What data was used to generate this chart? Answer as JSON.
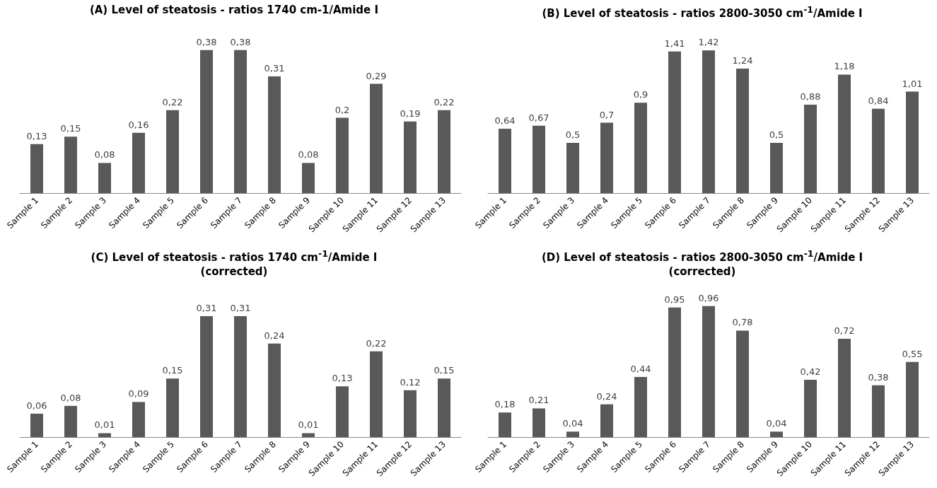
{
  "chart_data": [
    {
      "type": "bar",
      "title": "(A) Level of steatosis - ratios  1740 cm-1/Amide I",
      "categories": [
        "Sample 1",
        "Sample 2",
        "Sample 3",
        "Sample 4",
        "Sample 5",
        "Sample 6",
        "Sample 7",
        "Sample 8",
        "Sample 9",
        "Sample 10",
        "Sample 11",
        "Sample 12",
        "Sample 13"
      ],
      "values": [
        0.13,
        0.15,
        0.08,
        0.16,
        0.22,
        0.38,
        0.38,
        0.31,
        0.08,
        0.2,
        0.29,
        0.19,
        0.22
      ],
      "value_labels": [
        "0,13",
        "0,15",
        "0,08",
        "0,16",
        "0,22",
        "0,38",
        "0,38",
        "0,31",
        "0,08",
        "0,2",
        "0,29",
        "0,19",
        "0,22"
      ],
      "color": "#595959"
    },
    {
      "type": "bar",
      "title": "(B) Level of steatosis  - ratios 2800-3050 cm$^{-1}$/Amide I",
      "categories": [
        "Sample 1",
        "Sample 2",
        "Sample 3",
        "Sample 4",
        "Sample 5",
        "Sample 6",
        "Sample 7",
        "Sample 8",
        "Sample 9",
        "Sample 10",
        "Sample 11",
        "Sample 12",
        "Sample 13"
      ],
      "values": [
        0.64,
        0.67,
        0.5,
        0.7,
        0.9,
        1.41,
        1.42,
        1.24,
        0.5,
        0.88,
        1.18,
        0.84,
        1.01
      ],
      "value_labels": [
        "0,64",
        "0,67",
        "0,5",
        "0,7",
        "0,9",
        "1,41",
        "1,42",
        "1,24",
        "0,5",
        "0,88",
        "1,18",
        "0,84",
        "1,01"
      ],
      "color": "#595959"
    },
    {
      "type": "bar",
      "title": "(C) Level of steatosis  - ratios 1740 cm$^{-1}$/Amide I\n(corrected)",
      "categories": [
        "Sample 1",
        "Sample 2",
        "Sample 3",
        "Sample 4",
        "Sample 5",
        "Sample 6",
        "Sample 7",
        "Sample 8",
        "Sample 9",
        "Sample 10",
        "Sample 11",
        "Sample 12",
        "Sample 13"
      ],
      "values": [
        0.06,
        0.08,
        0.01,
        0.09,
        0.15,
        0.31,
        0.31,
        0.24,
        0.01,
        0.13,
        0.22,
        0.12,
        0.15
      ],
      "value_labels": [
        "0,06",
        "0,08",
        "0,01",
        "0,09",
        "0,15",
        "0,31",
        "0,31",
        "0,24",
        "0,01",
        "0,13",
        "0,22",
        "0,12",
        "0,15"
      ],
      "color": "#595959"
    },
    {
      "type": "bar",
      "title": "(D) Level of steatosis - ratios 2800-3050 cm$^{-1}$/Amide I\n(corrected)",
      "categories": [
        "Sample 1",
        "Sample 2",
        "Sample 3",
        "Sample 4",
        "Sample 5",
        "Sample 6",
        "Sample 7",
        "Sample 8",
        "Sample 9",
        "Sample 10",
        "Sample 11",
        "Sample 12",
        "Sample 13"
      ],
      "values": [
        0.18,
        0.21,
        0.04,
        0.24,
        0.44,
        0.95,
        0.96,
        0.78,
        0.04,
        0.42,
        0.72,
        0.38,
        0.55
      ],
      "value_labels": [
        "0,18",
        "0,21",
        "0,04",
        "0,24",
        "0,44",
        "0,95",
        "0,96",
        "0,78",
        "0,04",
        "0,42",
        "0,72",
        "0,38",
        "0,55"
      ],
      "color": "#595959"
    }
  ]
}
